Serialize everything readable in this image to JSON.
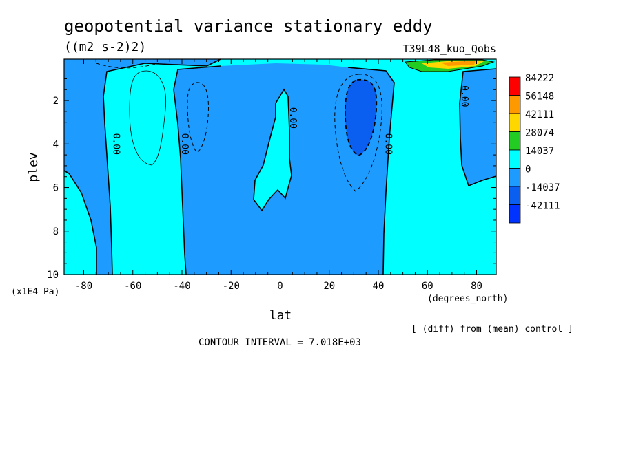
{
  "chart_data": {
    "type": "heatmap",
    "title": "geopotential variance stationary eddy",
    "subtitle": "((m2 s-2)2)",
    "run_label": "T39L48_kuo_Qobs",
    "xlabel": "lat",
    "xunits": "(degrees_north)",
    "ylabel": "plev",
    "yunits": "(x1E4 Pa)",
    "xlim": [
      -88,
      88
    ],
    "ylim": [
      10,
      0.1
    ],
    "x_ticks": [
      -80,
      -60,
      -40,
      -20,
      0,
      20,
      40,
      60,
      80
    ],
    "y_ticks": [
      2,
      4,
      6,
      8,
      10
    ],
    "contour_interval_text": "CONTOUR INTERVAL = 7.018E+03",
    "diff_note": "[ (diff) from (mean) control ]",
    "legend": {
      "placement": "right",
      "levels": [
        "84222",
        "56148",
        "42111",
        "28074",
        "14037",
        "0",
        "-14037",
        "-42111"
      ],
      "colors": [
        "#ff0000",
        "#ff9900",
        "#ffd700",
        "#22cc22",
        "#00ffff",
        "#1e9bff",
        "#0a5ff0",
        "#0033ff"
      ]
    },
    "fill_colors": {
      "cyan": "#00ffff",
      "blue": "#1e9bff",
      "deep_blue": "#0a5ff0",
      "green": "#22cc22",
      "yellow": "#ffd700",
      "orange": "#ff9900"
    },
    "contour_labels": [
      {
        "text": "0.00",
        "lat": -68,
        "plev": 4.0
      },
      {
        "text": "0.00",
        "lat": -40,
        "plev": 4.0
      },
      {
        "text": "0.00",
        "lat": 4,
        "plev": 2.8
      },
      {
        "text": "0.00",
        "lat": 43,
        "plev": 4.0
      },
      {
        "text": "0.00",
        "lat": 74,
        "plev": 1.8
      }
    ]
  }
}
